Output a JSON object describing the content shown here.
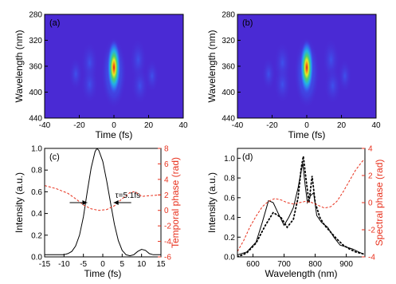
{
  "chart_data": [
    {
      "type": "heatmap",
      "panel": "(a)",
      "xlabel": "Time (fs)",
      "ylabel": "Wavelength (nm)",
      "xlim": [
        -40,
        40
      ],
      "ylim": [
        280,
        440
      ],
      "y_inverted": true,
      "xticks": [
        -40,
        -20,
        0,
        20,
        40
      ],
      "yticks": [
        280,
        320,
        360,
        400,
        440
      ],
      "peak": {
        "x": 0,
        "y": 362
      }
    },
    {
      "type": "heatmap",
      "panel": "(b)",
      "xlabel": "Time (fs)",
      "ylabel": "Wavelength (nm)",
      "xlim": [
        -40,
        40
      ],
      "ylim": [
        280,
        440
      ],
      "y_inverted": true,
      "xticks": [
        -40,
        -20,
        0,
        20,
        40
      ],
      "yticks": [
        280,
        320,
        360,
        400,
        440
      ],
      "peak": {
        "x": 0,
        "y": 362
      }
    },
    {
      "type": "line",
      "panel": "(c)",
      "xlabel": "Time (fs)",
      "ylabel": "Intensity (a.u.)",
      "y2label": "Temporal phase (rad)",
      "xlim": [
        -15,
        15
      ],
      "ylim": [
        0,
        1.0
      ],
      "y2lim": [
        -6,
        8
      ],
      "xticks": [
        -15,
        -10,
        -5,
        0,
        5,
        10,
        15
      ],
      "yticks": [
        "0.0",
        "0.2",
        "0.4",
        "0.6",
        "0.8",
        "1.0"
      ],
      "y2ticks": [
        -6,
        -4,
        -2,
        0,
        2,
        4,
        6,
        8
      ],
      "annotation": "τ=5.1fs",
      "series": [
        {
          "role": "intensity",
          "axis": "left",
          "style": "solid",
          "color": "#000000",
          "x": [
            -15,
            -13,
            -11,
            -10,
            -9,
            -8,
            -7,
            -6,
            -5,
            -4,
            -3,
            -2,
            -1.5,
            -1,
            0,
            1,
            2,
            3,
            4,
            5,
            6,
            7,
            8,
            9,
            10,
            11,
            12,
            13,
            15
          ],
          "y": [
            0.02,
            0.02,
            0.02,
            0.02,
            0.03,
            0.05,
            0.1,
            0.2,
            0.37,
            0.6,
            0.82,
            0.97,
            1.0,
            0.98,
            0.88,
            0.7,
            0.5,
            0.3,
            0.15,
            0.06,
            0.02,
            0.01,
            0.02,
            0.05,
            0.07,
            0.06,
            0.03,
            0.02,
            0.02
          ]
        },
        {
          "role": "temporal phase",
          "axis": "right",
          "style": "dashed",
          "color": "#e8301c",
          "x": [
            -15,
            -12,
            -9,
            -7,
            -5,
            -3,
            -1,
            1,
            3,
            5,
            7,
            8,
            9,
            10,
            12,
            15
          ],
          "y": [
            3.2,
            2.8,
            2.2,
            1.5,
            0.7,
            0.2,
            0.0,
            0.1,
            0.6,
            1.5,
            2.3,
            2.4,
            2.2,
            1.8,
            1.9,
            2.0
          ]
        }
      ]
    },
    {
      "type": "line",
      "panel": "(d)",
      "xlabel": "Wavelength (nm)",
      "ylabel": "Intensity (a.u.)",
      "y2label": "Spectral phase (rad)",
      "xlim": [
        550,
        960
      ],
      "ylim": [
        0.0,
        1.1
      ],
      "y2lim": [
        -4,
        4
      ],
      "xticks": [
        600,
        700,
        800,
        900
      ],
      "yticks": [
        "0.0",
        "0.2",
        "0.4",
        "0.6",
        "0.8",
        "1.0"
      ],
      "y2ticks": [
        -4,
        -2,
        0,
        2,
        4
      ],
      "series": [
        {
          "role": "measured spectrum",
          "axis": "left",
          "style": "solid",
          "color": "#000000",
          "x": [
            550,
            580,
            610,
            630,
            650,
            665,
            680,
            700,
            715,
            730,
            745,
            752,
            760,
            768,
            775,
            785,
            795,
            805,
            820,
            840,
            860,
            880,
            900,
            920,
            940,
            955
          ],
          "y": [
            0.02,
            0.05,
            0.15,
            0.35,
            0.57,
            0.55,
            0.45,
            0.32,
            0.4,
            0.5,
            0.7,
            0.82,
            0.95,
            0.72,
            0.55,
            0.62,
            0.65,
            0.42,
            0.35,
            0.3,
            0.2,
            0.12,
            0.1,
            0.08,
            0.05,
            0.03
          ]
        },
        {
          "role": "retrieved spectrum",
          "axis": "left",
          "style": "dotted",
          "color": "#000000",
          "x": [
            550,
            580,
            610,
            640,
            665,
            690,
            710,
            730,
            745,
            755,
            762,
            770,
            780,
            790,
            800,
            815,
            830,
            850,
            870,
            890,
            910,
            930,
            955
          ],
          "y": [
            0.0,
            0.04,
            0.14,
            0.32,
            0.45,
            0.4,
            0.3,
            0.38,
            0.6,
            0.9,
            1.02,
            0.8,
            0.55,
            0.82,
            0.55,
            0.4,
            0.32,
            0.25,
            0.18,
            0.12,
            0.08,
            0.05,
            0.03
          ]
        },
        {
          "role": "spectral phase",
          "axis": "right",
          "style": "dashed",
          "color": "#e8301c",
          "x": [
            550,
            570,
            590,
            610,
            630,
            650,
            670,
            690,
            710,
            730,
            750,
            770,
            790,
            810,
            830,
            850,
            870,
            890,
            910,
            930,
            950,
            958
          ],
          "y": [
            -3.6,
            -2.8,
            -1.8,
            -1.0,
            -0.3,
            0.1,
            0.3,
            0.2,
            0.0,
            -0.1,
            0.0,
            0.1,
            0.0,
            -0.2,
            -0.4,
            -0.3,
            0.1,
            0.8,
            1.6,
            2.4,
            3.0,
            3.2
          ]
        }
      ]
    }
  ]
}
